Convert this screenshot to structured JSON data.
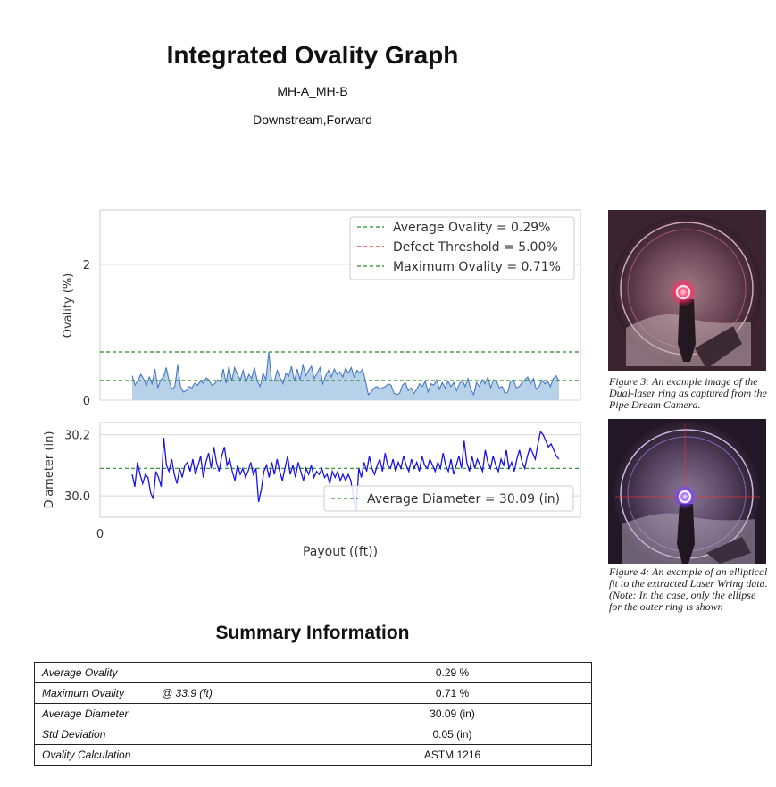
{
  "header": {
    "title": "Integrated Ovality Graph",
    "location": "MH-A_MH-B",
    "direction": "Downstream,Forward"
  },
  "chart_data": [
    {
      "type": "line",
      "fill": "area",
      "ylabel": "Ovality (%)",
      "xlabel": "",
      "ylim": [
        0,
        2.8
      ],
      "yticks": [
        "2",
        "0"
      ],
      "grid": true,
      "legend_position": "top-right",
      "legend": [
        {
          "label": "Average Ovality = 0.29%",
          "color": "#228b22",
          "style": "dashed",
          "y": 0.29
        },
        {
          "label": "Defect Threshold = 5.00%",
          "color": "#e0202a",
          "style": "dashed",
          "y": 5.0
        },
        {
          "label": "Maximum Ovality = 0.71%",
          "color": "#228b22",
          "style": "dashed",
          "y": 0.71
        }
      ],
      "series": [
        {
          "name": "Ovality",
          "color": "#4a78c8",
          "fill": "#b7d2e8",
          "values": [
            0.36,
            0.22,
            0.29,
            0.38,
            0.32,
            0.21,
            0.34,
            0.24,
            0.46,
            0.18,
            0.3,
            0.34,
            0.48,
            0.28,
            0.16,
            0.2,
            0.52,
            0.2,
            0.12,
            0.14,
            0.2,
            0.18,
            0.25,
            0.22,
            0.28,
            0.25,
            0.33,
            0.3,
            0.22,
            0.24,
            0.3,
            0.27,
            0.46,
            0.25,
            0.5,
            0.28,
            0.48,
            0.38,
            0.3,
            0.44,
            0.26,
            0.38,
            0.32,
            0.48,
            0.28,
            0.2,
            0.4,
            0.3,
            0.71,
            0.3,
            0.28,
            0.44,
            0.33,
            0.24,
            0.4,
            0.35,
            0.5,
            0.28,
            0.46,
            0.3,
            0.52,
            0.36,
            0.44,
            0.5,
            0.32,
            0.4,
            0.48,
            0.24,
            0.36,
            0.44,
            0.34,
            0.46,
            0.38,
            0.42,
            0.34,
            0.47,
            0.4,
            0.48,
            0.34,
            0.44,
            0.4,
            0.46,
            0.28,
            0.08,
            0.12,
            0.18,
            0.2,
            0.16,
            0.18,
            0.2,
            0.24,
            0.22,
            0.1,
            0.08,
            0.1,
            0.22,
            0.26,
            0.14,
            0.18,
            0.1,
            0.16,
            0.24,
            0.2,
            0.28,
            0.12,
            0.24,
            0.22,
            0.3,
            0.16,
            0.26,
            0.18,
            0.28,
            0.2,
            0.26,
            0.14,
            0.24,
            0.3,
            0.2,
            0.32,
            0.16,
            0.08,
            0.26,
            0.2,
            0.3,
            0.24,
            0.34,
            0.18,
            0.3,
            0.28,
            0.18,
            0.2,
            0.1,
            0.12,
            0.28,
            0.3,
            0.18,
            0.2,
            0.26,
            0.3,
            0.34,
            0.24,
            0.32,
            0.16,
            0.2,
            0.3,
            0.24,
            0.28,
            0.2,
            0.32,
            0.36,
            0.28
          ]
        }
      ]
    },
    {
      "type": "line",
      "ylabel": "Diameter (in)",
      "xlabel": "Payout ((ft))",
      "ylim": [
        29.93,
        30.24
      ],
      "yticks": [
        "30.2",
        "30.0"
      ],
      "xticks": [
        "0"
      ],
      "grid": true,
      "legend_position": "bottom-right",
      "legend": [
        {
          "label": "Average Diameter = 30.09 (in)",
          "color": "#228b22",
          "style": "dashed",
          "y": 30.09
        }
      ],
      "series": [
        {
          "name": "Diameter",
          "color": "#1a12e6",
          "values": [
            30.07,
            30.03,
            30.11,
            30.07,
            30.04,
            30.07,
            30.06,
            30.01,
            29.99,
            30.08,
            30.06,
            30.03,
            30.19,
            30.1,
            30.08,
            30.12,
            30.07,
            30.04,
            30.09,
            30.06,
            30.1,
            30.11,
            30.08,
            30.12,
            30.07,
            30.1,
            30.13,
            30.06,
            30.11,
            30.14,
            30.09,
            30.16,
            30.11,
            30.08,
            30.13,
            30.16,
            30.1,
            30.12,
            30.08,
            30.05,
            30.1,
            30.07,
            30.09,
            30.06,
            30.08,
            30.11,
            30.07,
            30.09,
            29.98,
            30.02,
            30.08,
            30.1,
            30.06,
            30.11,
            30.07,
            30.12,
            30.08,
            30.05,
            30.09,
            30.13,
            30.07,
            30.1,
            30.06,
            30.11,
            30.08,
            30.05,
            30.09,
            30.07,
            30.1,
            30.06,
            30.08,
            30.07,
            30.09,
            30.06,
            30.07,
            30.04,
            30.08,
            30.06,
            30.08,
            30.05,
            30.07,
            30.05,
            30.07,
            30.05,
            29.99,
            29.95,
            30.09,
            30.06,
            30.11,
            30.08,
            30.13,
            30.09,
            30.07,
            30.1,
            30.12,
            30.08,
            30.14,
            30.1,
            30.09,
            30.12,
            30.08,
            30.11,
            30.09,
            30.13,
            30.1,
            30.08,
            30.12,
            30.09,
            30.11,
            30.08,
            30.13,
            30.1,
            30.09,
            30.12,
            30.1,
            30.08,
            30.11,
            30.09,
            30.14,
            30.1,
            30.08,
            30.12,
            30.07,
            30.1,
            30.13,
            30.09,
            30.18,
            30.11,
            30.08,
            30.13,
            30.09,
            30.12,
            30.1,
            30.08,
            30.15,
            30.11,
            30.09,
            30.13,
            30.1,
            30.08,
            30.12,
            30.1,
            30.15,
            30.09,
            30.11,
            30.08,
            30.12,
            30.15,
            30.11,
            30.09,
            30.13,
            30.16,
            30.14,
            30.12,
            30.17,
            30.21,
            30.2,
            30.18,
            30.16,
            30.17,
            30.15,
            30.13,
            30.12
          ]
        }
      ]
    }
  ],
  "figures": [
    {
      "caption": "Figure 3: An example image of the Dual-laser ring as captured from the Pipe Dream Camera."
    },
    {
      "caption": "Figure 4: An example of an elliptical fit to the extracted Laser Wring data. (Note: In the case, only the ellipse for the outer ring is shown"
    }
  ],
  "summary": {
    "title": "Summary Information",
    "rows": [
      {
        "label": "Average Ovality",
        "extra": "",
        "value": "0.29 %"
      },
      {
        "label": "Maximum Ovality",
        "extra": "@ 33.9 (ft)",
        "value": "0.71 %"
      },
      {
        "label": "Average Diameter",
        "extra": "",
        "value": "30.09 (in)"
      },
      {
        "label": "Std Deviation",
        "extra": "",
        "value": "0.05 (in)"
      },
      {
        "label": "Ovality Calculation",
        "extra": "",
        "value": "ASTM 1216"
      }
    ]
  }
}
